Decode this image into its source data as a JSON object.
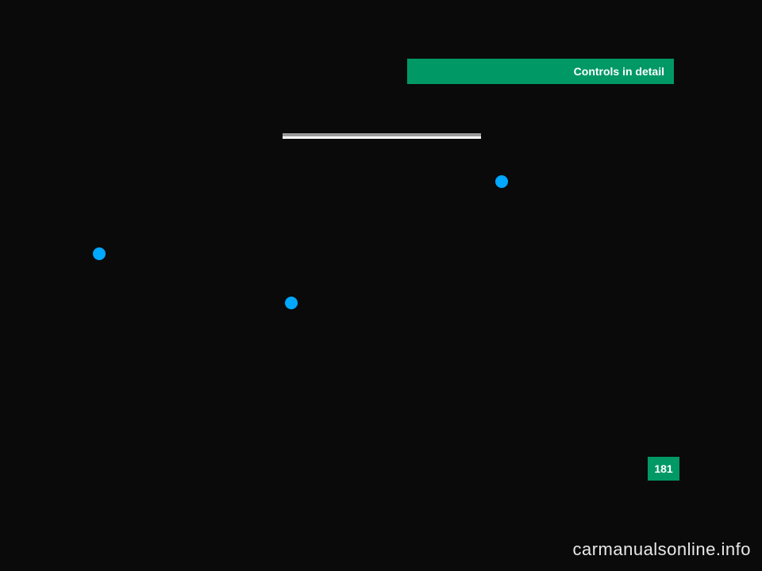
{
  "header": {
    "title": "Controls in detail",
    "bg_color": "#009966",
    "text_color": "#ffffff"
  },
  "page_number": "181",
  "watermark": "carmanualsonline.info",
  "bullets": {
    "color": "#00a8ff"
  },
  "divider": {
    "top_color": "#9a9a9a",
    "bottom_color": "#ffffff"
  },
  "background_color": "#0a0a0a"
}
